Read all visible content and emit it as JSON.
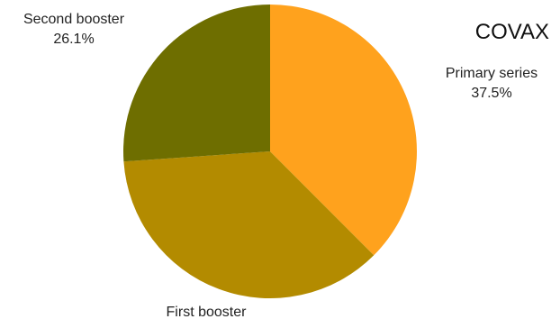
{
  "chart_data": {
    "type": "pie",
    "title": "COVAX",
    "categories": [
      "Primary series",
      "First booster",
      "Second booster"
    ],
    "values": [
      37.5,
      36.4,
      26.1
    ],
    "data_labels": [
      "37.5%",
      "",
      "26.1%"
    ],
    "colors": [
      "#ffa21d",
      "#b38b00",
      "#6e6e00"
    ],
    "start_angle_deg": 0,
    "direction": "clockwise",
    "legend": "none"
  }
}
